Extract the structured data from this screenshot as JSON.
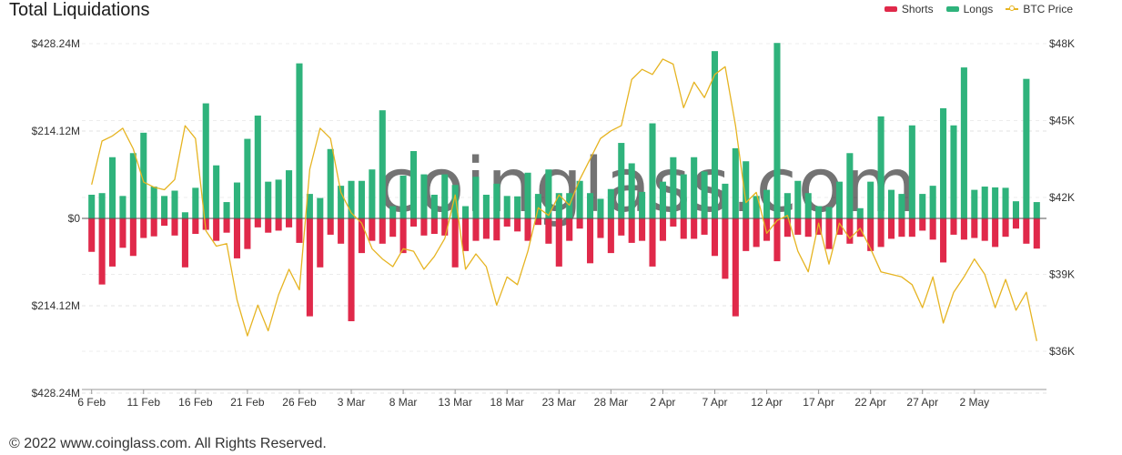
{
  "title": "Total Liquidations",
  "legend": [
    {
      "label": "Shorts",
      "color": "#e0294a",
      "kind": "bar"
    },
    {
      "label": "Longs",
      "color": "#2fb37c",
      "kind": "bar"
    },
    {
      "label": "BTC Price",
      "color": "#e6b422",
      "kind": "line"
    }
  ],
  "watermark": "coinglass.com",
  "footer": "© 2022 www.coinglass.com. All Rights Reserved.",
  "chart_data": {
    "type": "bar",
    "ylim_left": [
      -428.24,
      428.24
    ],
    "ylim_right": [
      35000,
      48000
    ],
    "left_ticks": [
      {
        "value": 428.24,
        "label": "$428.24M"
      },
      {
        "value": 214.12,
        "label": "$214.12M"
      },
      {
        "value": 0,
        "label": "$0"
      },
      {
        "value": -214.12,
        "label": "$214.12M"
      },
      {
        "value": -428.24,
        "label": "$428.24M"
      }
    ],
    "right_ticks": [
      {
        "value": 48000,
        "label": "$48K"
      },
      {
        "value": 45000,
        "label": "$45K"
      },
      {
        "value": 42000,
        "label": "$42K"
      },
      {
        "value": 39000,
        "label": "$39K"
      },
      {
        "value": 36000,
        "label": "$36K"
      }
    ],
    "x_ticks": [
      {
        "index": 0,
        "label": "6 Feb"
      },
      {
        "index": 5,
        "label": "11 Feb"
      },
      {
        "index": 10,
        "label": "16 Feb"
      },
      {
        "index": 15,
        "label": "21 Feb"
      },
      {
        "index": 20,
        "label": "26 Feb"
      },
      {
        "index": 25,
        "label": "3 Mar"
      },
      {
        "index": 30,
        "label": "8 Mar"
      },
      {
        "index": 35,
        "label": "13 Mar"
      },
      {
        "index": 40,
        "label": "18 Mar"
      },
      {
        "index": 45,
        "label": "23 Mar"
      },
      {
        "index": 50,
        "label": "28 Mar"
      },
      {
        "index": 55,
        "label": "2 Apr"
      },
      {
        "index": 60,
        "label": "7 Apr"
      },
      {
        "index": 65,
        "label": "12 Apr"
      },
      {
        "index": 70,
        "label": "17 Apr"
      },
      {
        "index": 75,
        "label": "22 Apr"
      },
      {
        "index": 80,
        "label": "27 Apr"
      },
      {
        "index": 85,
        "label": "2 May"
      }
    ],
    "series": [
      {
        "name": "Longs",
        "color": "#2fb37c",
        "values": [
          58,
          62,
          150,
          55,
          160,
          210,
          78,
          55,
          68,
          15,
          75,
          282,
          130,
          40,
          88,
          195,
          252,
          90,
          95,
          118,
          380,
          60,
          50,
          170,
          80,
          92,
          92,
          120,
          265,
          30,
          105,
          165,
          108,
          58,
          108,
          82,
          30,
          102,
          58,
          85,
          55,
          54,
          112,
          60,
          120,
          62,
          62,
          92,
          62,
          48,
          72,
          185,
          135,
          65,
          233,
          90,
          150,
          108,
          150,
          115,
          410,
          85,
          172,
          140,
          55,
          70,
          430,
          62,
          92,
          62,
          30,
          28,
          90,
          160,
          25,
          90,
          250,
          70,
          60,
          228,
          60,
          80,
          270,
          228,
          370,
          70,
          78,
          76,
          75,
          42,
          342,
          40
        ]
      },
      {
        "name": "Shorts",
        "color": "#e0294a",
        "values": [
          82,
          162,
          118,
          72,
          92,
          48,
          44,
          18,
          42,
          120,
          38,
          28,
          55,
          35,
          98,
          75,
          22,
          35,
          30,
          22,
          60,
          240,
          120,
          40,
          62,
          252,
          85,
          55,
          62,
          45,
          85,
          20,
          42,
          38,
          42,
          120,
          80,
          55,
          50,
          54,
          20,
          32,
          55,
          16,
          62,
          118,
          55,
          25,
          110,
          48,
          85,
          42,
          60,
          55,
          118,
          55,
          20,
          50,
          50,
          40,
          92,
          148,
          240,
          80,
          70,
          55,
          105,
          45,
          40,
          45,
          40,
          75,
          40,
          62,
          45,
          80,
          70,
          50,
          45,
          45,
          30,
          52,
          108,
          40,
          52,
          48,
          55,
          70,
          45,
          25,
          62,
          74
        ]
      },
      {
        "name": "BTC Price",
        "color": "#e6b422",
        "values": [
          42500,
          44200,
          44400,
          44700,
          43900,
          42600,
          42400,
          42300,
          42700,
          44800,
          44300,
          40700,
          40100,
          40200,
          38000,
          36600,
          37800,
          36800,
          38200,
          39200,
          38400,
          43100,
          44700,
          44300,
          42200,
          41400,
          41000,
          40000,
          39600,
          39300,
          40000,
          39900,
          39200,
          39700,
          40400,
          42100,
          39200,
          39800,
          39300,
          37800,
          38900,
          38600,
          39900,
          41600,
          41300,
          42100,
          41700,
          42700,
          43500,
          44300,
          44600,
          44800,
          46600,
          47000,
          46800,
          47400,
          47200,
          45500,
          46500,
          45900,
          46800,
          47100,
          44800,
          41800,
          42200,
          40600,
          41100,
          41300,
          39900,
          39100,
          41000,
          39400,
          41000,
          40400,
          40800,
          40000,
          39100,
          39000,
          38900,
          38600,
          37700,
          38900,
          37100,
          38300,
          38900,
          39600,
          39000,
          37700,
          38800,
          37600,
          38300,
          36400
        ]
      }
    ]
  }
}
